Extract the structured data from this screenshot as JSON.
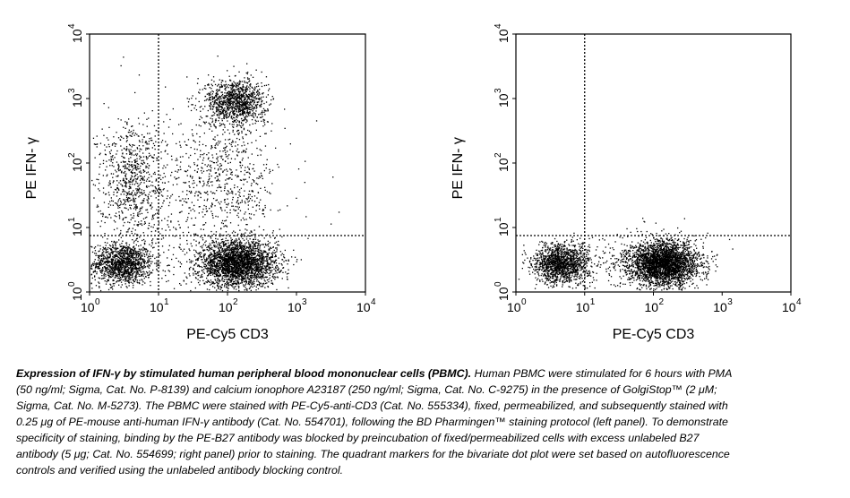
{
  "chart_data": [
    {
      "type": "scatter",
      "panel": "left",
      "xlabel": "PE-Cy5 CD3",
      "ylabel": "PE IFN- γ",
      "xscale": "log",
      "yscale": "log",
      "xlim": [
        1,
        10000
      ],
      "ylim": [
        1,
        10000
      ],
      "x_ticks": [
        {
          "base": "10",
          "exp": "0"
        },
        {
          "base": "10",
          "exp": "1"
        },
        {
          "base": "10",
          "exp": "2"
        },
        {
          "base": "10",
          "exp": "3"
        },
        {
          "base": "10",
          "exp": "4"
        }
      ],
      "y_ticks": [
        {
          "base": "10",
          "exp": "0"
        },
        {
          "base": "10",
          "exp": "1"
        },
        {
          "base": "10",
          "exp": "2"
        },
        {
          "base": "10",
          "exp": "3"
        },
        {
          "base": "10",
          "exp": "4"
        }
      ],
      "quadrant_x": 10,
      "quadrant_y": 7.5,
      "grid": false,
      "populations": [
        {
          "center": [
            3,
            2.8
          ],
          "spread_log10": [
            0.22,
            0.16
          ],
          "n": 1300
        },
        {
          "center": [
            140,
            2.8
          ],
          "spread_log10": [
            0.28,
            0.18
          ],
          "n": 2700
        },
        {
          "center": [
            130,
            900
          ],
          "spread_log10": [
            0.22,
            0.18
          ],
          "n": 1100
        },
        {
          "center": [
            4,
            60
          ],
          "spread_log10": [
            0.25,
            0.45
          ],
          "n": 700
        },
        {
          "center": [
            100,
            60
          ],
          "spread_log10": [
            0.35,
            0.5
          ],
          "n": 500
        },
        {
          "center": [
            20,
            20
          ],
          "spread_log10": [
            0.7,
            0.7
          ],
          "n": 500
        }
      ]
    },
    {
      "type": "scatter",
      "panel": "right",
      "xlabel": "PE-Cy5 CD3",
      "ylabel": "PE IFN- γ",
      "xscale": "log",
      "yscale": "log",
      "xlim": [
        1,
        10000
      ],
      "ylim": [
        1,
        10000
      ],
      "x_ticks": [
        {
          "base": "10",
          "exp": "0"
        },
        {
          "base": "10",
          "exp": "1"
        },
        {
          "base": "10",
          "exp": "2"
        },
        {
          "base": "10",
          "exp": "3"
        },
        {
          "base": "10",
          "exp": "4"
        }
      ],
      "y_ticks": [
        {
          "base": "10",
          "exp": "0"
        },
        {
          "base": "10",
          "exp": "1"
        },
        {
          "base": "10",
          "exp": "2"
        },
        {
          "base": "10",
          "exp": "3"
        },
        {
          "base": "10",
          "exp": "4"
        }
      ],
      "quadrant_x": 10,
      "quadrant_y": 7.5,
      "grid": false,
      "populations": [
        {
          "center": [
            4.5,
            2.8
          ],
          "spread_log10": [
            0.2,
            0.15
          ],
          "n": 1400
        },
        {
          "center": [
            140,
            2.8
          ],
          "spread_log10": [
            0.25,
            0.17
          ],
          "n": 3000
        },
        {
          "center": [
            30,
            3
          ],
          "spread_log10": [
            0.6,
            0.25
          ],
          "n": 200
        }
      ]
    }
  ],
  "caption": {
    "title": "Expression of IFN-γ by stimulated human peripheral blood mononuclear cells (PBMC).",
    "body": " Human PBMC were stimulated for 6 hours with PMA (50 ng/ml; Sigma, Cat. No. P-8139) and calcium ionophore A23187 (250 ng/ml; Sigma, Cat. No. C-9275) in the presence of GolgiStop™ (2 μM; Sigma, Cat. No. M-5273). The PBMC were stained with PE-Cy5-anti-CD3 (Cat. No. 555334), fixed, permeabilized, and subsequently stained with 0.25 μg of PE-mouse anti-human IFN-γ antibody (Cat. No. 554701), following the BD Pharmingen™ staining protocol (left panel). To demonstrate specificity of staining, binding by the PE-B27 antibody was blocked by preincubation of fixed/permeabilized cells with excess unlabeled B27 antibody (5 μg; Cat. No. 554699; right panel) prior to staining. The quadrant markers for the bivariate dot plot were set based on autofluorescence controls and verified using the unlabeled antibody blocking control."
  }
}
